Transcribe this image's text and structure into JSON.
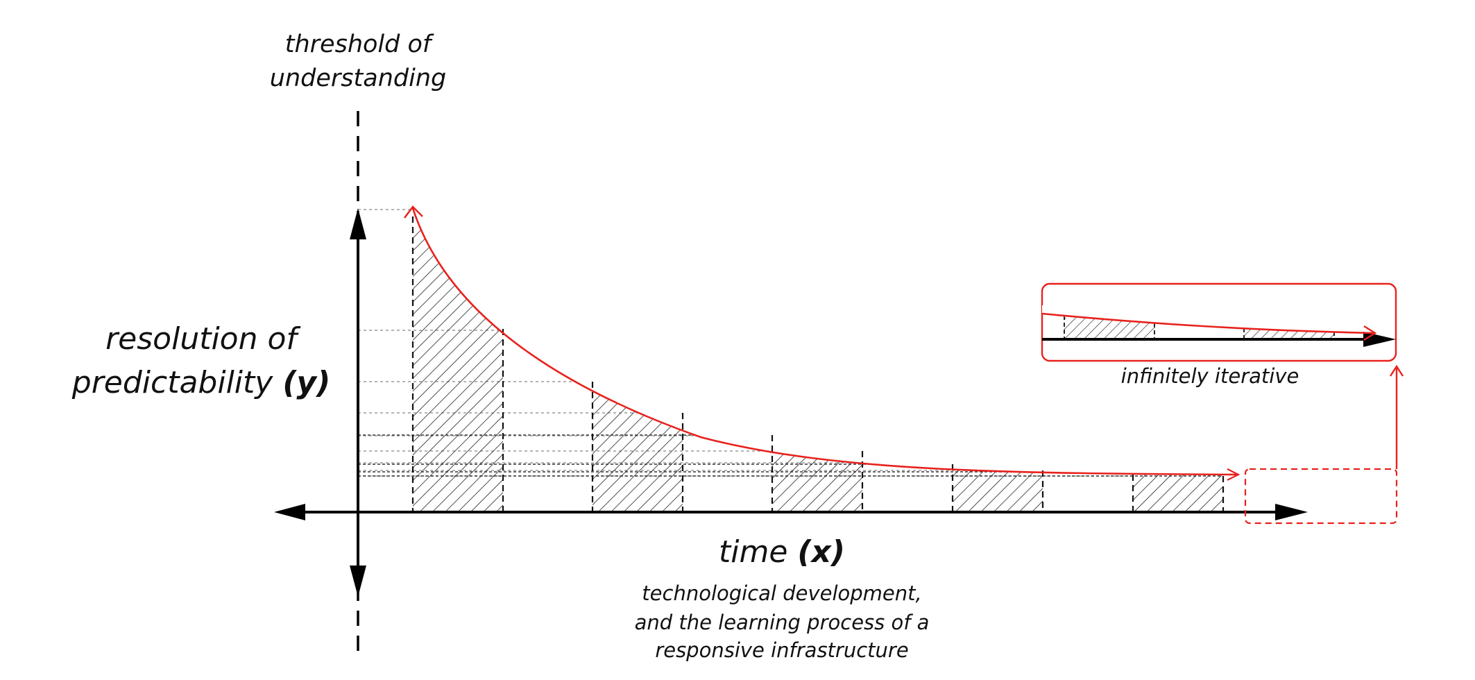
{
  "diagram": {
    "threshold_label": [
      "threshold of",
      "understanding"
    ],
    "y_axis_label": [
      "resolution of",
      "predictability"
    ],
    "y_axis_variable": "(y)",
    "x_axis_label": "time",
    "x_axis_variable": "(x)",
    "x_axis_sublabel": [
      "technological development,",
      "and the learning process of a",
      "responsive infrastructure"
    ],
    "inset_label": "infinitely iterative",
    "colors": {
      "curve": "#e8211c",
      "axis": "#000000",
      "guide": "#9a9a9a",
      "hatch": "#222222"
    },
    "hatched_bar_count": 5
  }
}
